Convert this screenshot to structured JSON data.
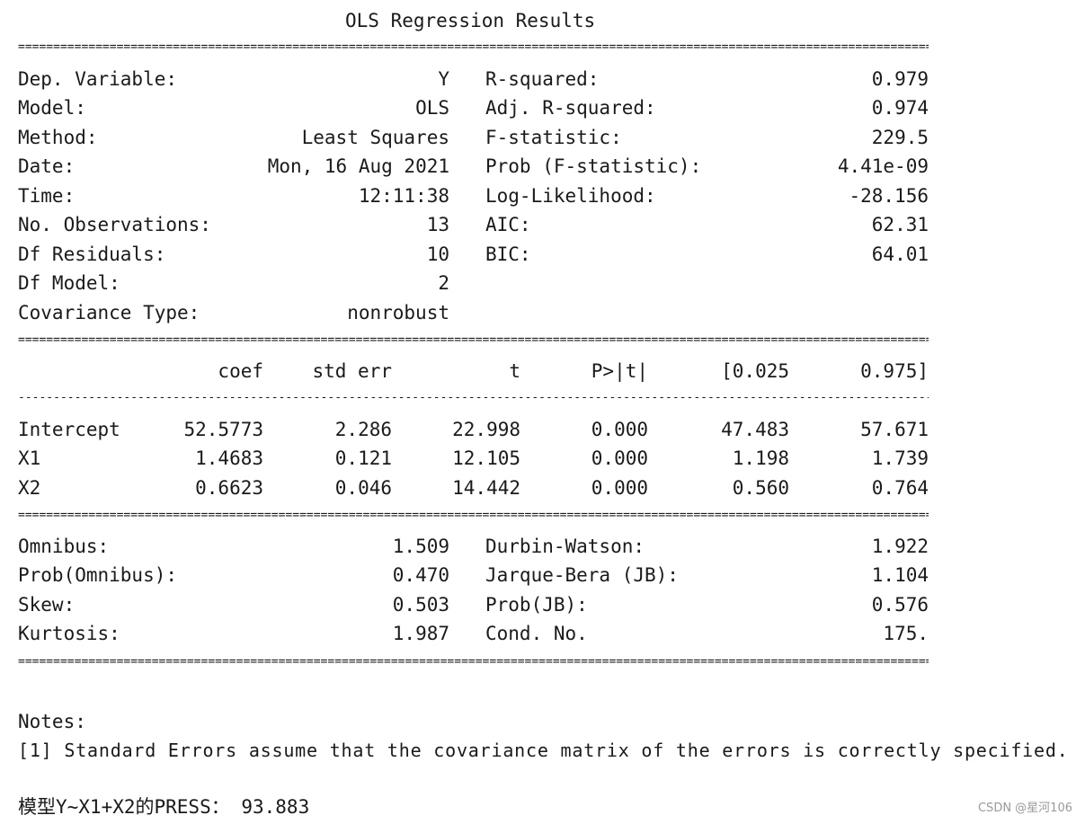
{
  "title": "OLS Regression Results",
  "separators": {
    "double": "=====================================================================================================================================================",
    "single": "-----------------------------------------------------------------------------------------------------------------------------------------------------"
  },
  "summary_left": [
    {
      "label": "Dep. Variable:",
      "value": "Y"
    },
    {
      "label": "Model:",
      "value": "OLS"
    },
    {
      "label": "Method:",
      "value": "Least Squares"
    },
    {
      "label": "Date:",
      "value": "Mon, 16 Aug 2021"
    },
    {
      "label": "Time:",
      "value": "12:11:38"
    },
    {
      "label": "No. Observations:",
      "value": "13"
    },
    {
      "label": "Df Residuals:",
      "value": "10"
    },
    {
      "label": "Df Model:",
      "value": "2"
    },
    {
      "label": "Covariance Type:",
      "value": "nonrobust"
    }
  ],
  "summary_right": [
    {
      "label": "R-squared:",
      "value": "0.979"
    },
    {
      "label": "Adj. R-squared:",
      "value": "0.974"
    },
    {
      "label": "F-statistic:",
      "value": "229.5"
    },
    {
      "label": "Prob (F-statistic):",
      "value": "4.41e-09"
    },
    {
      "label": "Log-Likelihood:",
      "value": "-28.156"
    },
    {
      "label": "AIC:",
      "value": "62.31"
    },
    {
      "label": "BIC:",
      "value": "64.01"
    }
  ],
  "coef_table": {
    "headers": [
      "coef",
      "std err",
      "t",
      "P>|t|",
      "[0.025",
      "0.975]"
    ],
    "rows": [
      {
        "name": "Intercept",
        "cells": [
          "52.5773",
          "2.286",
          "22.998",
          "0.000",
          "47.483",
          "57.671"
        ]
      },
      {
        "name": "X1",
        "cells": [
          "1.4683",
          "0.121",
          "12.105",
          "0.000",
          "1.198",
          "1.739"
        ]
      },
      {
        "name": "X2",
        "cells": [
          "0.6623",
          "0.046",
          "14.442",
          "0.000",
          "0.560",
          "0.764"
        ]
      }
    ]
  },
  "diagnostics_left": [
    {
      "label": "Omnibus:",
      "value": "1.509"
    },
    {
      "label": "Prob(Omnibus):",
      "value": "0.470"
    },
    {
      "label": "Skew:",
      "value": "0.503"
    },
    {
      "label": "Kurtosis:",
      "value": "1.987"
    }
  ],
  "diagnostics_right": [
    {
      "label": "Durbin-Watson:",
      "value": "1.922"
    },
    {
      "label": "Jarque-Bera (JB):",
      "value": "1.104"
    },
    {
      "label": "Prob(JB):",
      "value": "0.576"
    },
    {
      "label": "Cond. No.",
      "value": "175."
    }
  ],
  "notes": {
    "heading": "Notes:",
    "line": "[1] Standard Errors assume that the covariance matrix of the errors is correctly specified."
  },
  "press_line": "模型Y~X1+X2的PRESS： 93.883",
  "watermark": "CSDN @星河106"
}
